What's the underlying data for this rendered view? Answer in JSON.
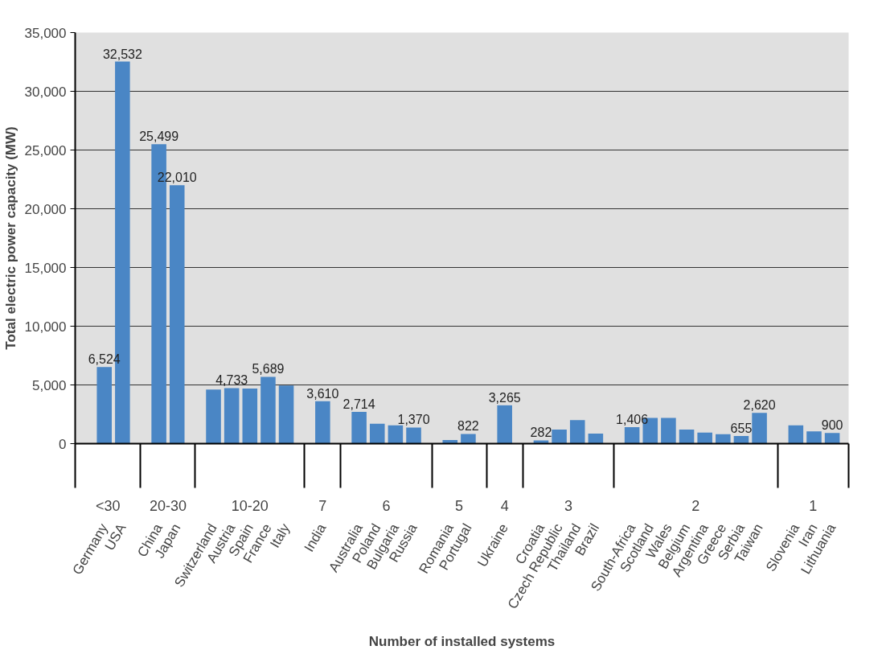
{
  "chart_data": {
    "type": "bar",
    "xlabel": "Number of installed systems",
    "ylabel": "Total electric power capacity (MW)",
    "categories": [
      "Germany",
      "USA",
      null,
      "China",
      "Japan",
      null,
      "Switzerland",
      "Austria",
      "Spain",
      "France",
      "Italy",
      null,
      "India",
      null,
      "Australia",
      "Poland",
      "Bulgaria",
      "Russia",
      null,
      "Romania",
      "Portugal",
      null,
      "Ukraine",
      null,
      "Croatia",
      "Czech Republic",
      "Thailand",
      "Brazil",
      null,
      "South-Africa",
      "Scotland",
      "Wales",
      "Belgium",
      "Argentina",
      "Greece",
      "Serbia",
      "Taiwan",
      null,
      "Slovenia",
      "Iran",
      "Lithuania"
    ],
    "values": [
      6524,
      32532,
      null,
      25499,
      22010,
      null,
      4600,
      4733,
      4700,
      5689,
      4950,
      null,
      3610,
      null,
      2714,
      1700,
      1550,
      1370,
      null,
      300,
      822,
      null,
      3265,
      null,
      282,
      1200,
      2000,
      850,
      null,
      1406,
      2200,
      2200,
      1200,
      950,
      800,
      655,
      2620,
      null,
      1550,
      1050,
      900
    ],
    "value_labels": [
      "6,524",
      "32,532",
      null,
      "25,499",
      "22,010",
      null,
      null,
      "4,733",
      null,
      "5,689",
      null,
      null,
      "3,610",
      null,
      "2,714",
      null,
      null,
      "1,370",
      null,
      null,
      "822",
      null,
      "3,265",
      null,
      "282",
      null,
      null,
      null,
      null,
      "1,406",
      null,
      null,
      null,
      null,
      null,
      "655",
      "2,620",
      null,
      null,
      null,
      "900"
    ],
    "color": "#4a86c5",
    "ylim": [
      0,
      35000
    ],
    "yticks": [
      {
        "value": 0,
        "label": "0"
      },
      {
        "value": 5000,
        "label": "5,000"
      },
      {
        "value": 10000,
        "label": "10,000"
      },
      {
        "value": 15000,
        "label": "15,000"
      },
      {
        "value": 20000,
        "label": "20,000"
      },
      {
        "value": 25000,
        "label": "25,000"
      },
      {
        "value": 30000,
        "label": "30,000"
      },
      {
        "value": 35000,
        "label": "35,000"
      }
    ],
    "grid": "y",
    "annotations": [
      "<30",
      "20-30",
      "10-20",
      "7",
      "6",
      "5",
      "4",
      "3",
      "2",
      "1"
    ]
  }
}
